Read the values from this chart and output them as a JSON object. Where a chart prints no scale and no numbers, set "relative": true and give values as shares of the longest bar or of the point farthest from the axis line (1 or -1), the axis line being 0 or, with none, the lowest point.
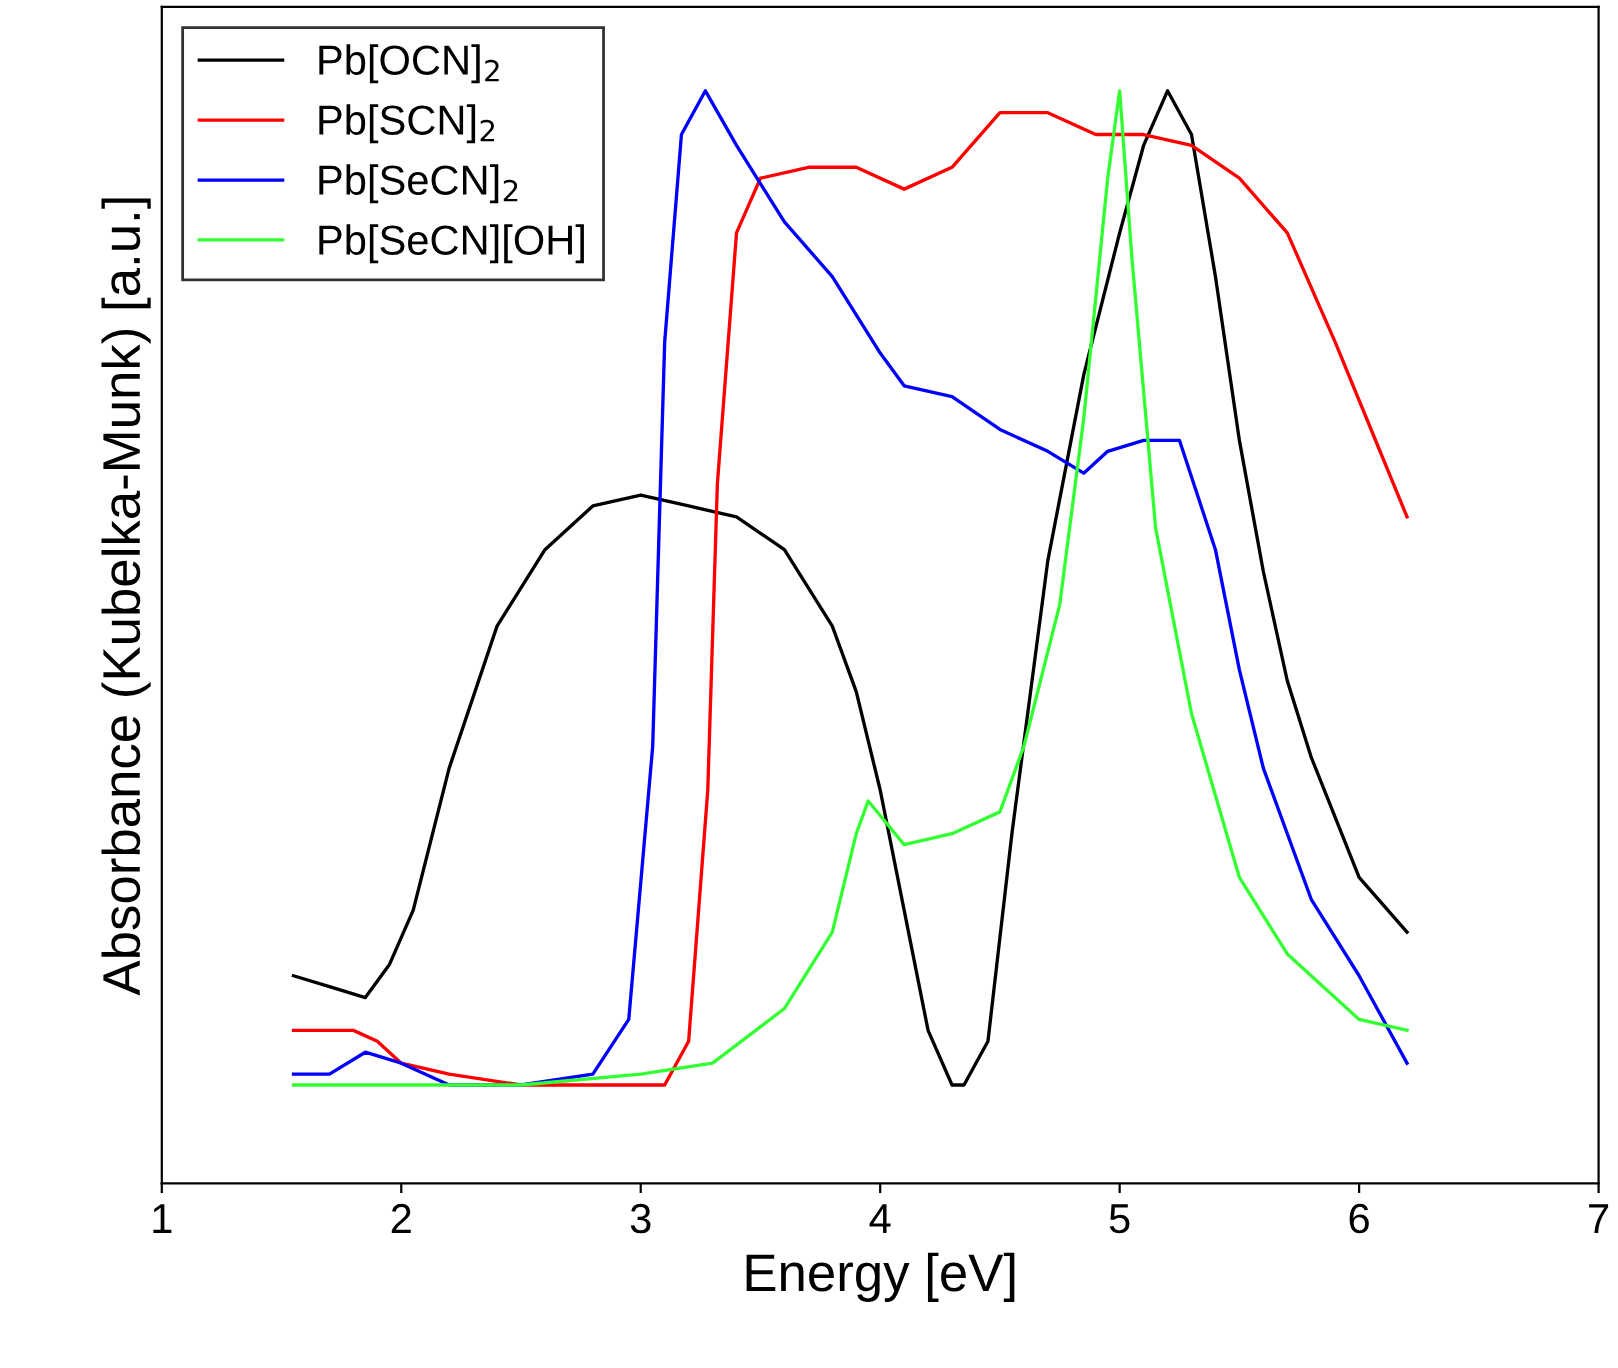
{
  "chart_data": {
    "type": "line",
    "xlabel": "Energy [eV]",
    "ylabel": "Absorbance (Kubelka-Munk) [a.u.]",
    "relative": true,
    "xlim": [
      1,
      7
    ],
    "xticks": [
      1,
      2,
      3,
      4,
      5,
      6,
      7
    ],
    "legend": "top left",
    "grid": false,
    "marker": "none",
    "line_style": "solid",
    "series": [
      {
        "name": "Pb[OCN]$_{2}$",
        "color": "#000000",
        "x": [
          1.55,
          1.7,
          1.85,
          1.95,
          2.05,
          2.2,
          2.4,
          2.6,
          2.8,
          3.0,
          3.2,
          3.4,
          3.6,
          3.8,
          3.9,
          4.0,
          4.1,
          4.2,
          4.3,
          4.35,
          4.45,
          4.55,
          4.7,
          4.85,
          5.0,
          5.1,
          5.2,
          5.3,
          5.4,
          5.5,
          5.6,
          5.7,
          5.8,
          6.0,
          6.2
        ],
        "values": [
          0.19,
          0.18,
          0.17,
          0.2,
          0.25,
          0.38,
          0.51,
          0.58,
          0.62,
          0.63,
          0.62,
          0.61,
          0.58,
          0.51,
          0.45,
          0.36,
          0.25,
          0.14,
          0.09,
          0.09,
          0.13,
          0.32,
          0.57,
          0.74,
          0.87,
          0.95,
          1.0,
          0.96,
          0.83,
          0.68,
          0.56,
          0.46,
          0.39,
          0.28,
          0.23
        ]
      },
      {
        "name": "Pb[SCN]$_{2}$",
        "color": "#ff0000",
        "x": [
          1.55,
          1.8,
          1.9,
          2.0,
          2.2,
          2.5,
          2.8,
          3.1,
          3.2,
          3.28,
          3.32,
          3.4,
          3.5,
          3.7,
          3.9,
          4.1,
          4.3,
          4.5,
          4.7,
          4.9,
          5.1,
          5.3,
          5.5,
          5.7,
          5.9,
          6.05,
          6.2
        ],
        "values": [
          0.14,
          0.14,
          0.13,
          0.11,
          0.1,
          0.09,
          0.09,
          0.09,
          0.13,
          0.36,
          0.64,
          0.87,
          0.92,
          0.93,
          0.93,
          0.91,
          0.93,
          0.98,
          0.98,
          0.96,
          0.96,
          0.95,
          0.92,
          0.87,
          0.77,
          0.69,
          0.61
        ]
      },
      {
        "name": "Pb[SeCN]$_{2}$",
        "color": "#0000ff",
        "x": [
          1.55,
          1.7,
          1.85,
          2.0,
          2.2,
          2.5,
          2.8,
          2.95,
          3.05,
          3.1,
          3.17,
          3.27,
          3.4,
          3.6,
          3.8,
          4.0,
          4.1,
          4.3,
          4.5,
          4.7,
          4.85,
          4.95,
          5.1,
          5.25,
          5.4,
          5.5,
          5.6,
          5.8,
          6.0,
          6.2
        ],
        "values": [
          0.1,
          0.1,
          0.12,
          0.11,
          0.09,
          0.09,
          0.1,
          0.15,
          0.4,
          0.77,
          0.96,
          1.0,
          0.95,
          0.88,
          0.83,
          0.76,
          0.73,
          0.72,
          0.69,
          0.67,
          0.65,
          0.67,
          0.68,
          0.68,
          0.58,
          0.47,
          0.38,
          0.26,
          0.19,
          0.11
        ]
      },
      {
        "name": "Pb[SeCN][OH]",
        "color": "#33ff33",
        "x": [
          1.55,
          2.0,
          2.5,
          3.0,
          3.3,
          3.6,
          3.8,
          3.9,
          3.95,
          4.1,
          4.3,
          4.5,
          4.6,
          4.75,
          4.85,
          4.95,
          5.0,
          5.05,
          5.15,
          5.3,
          5.5,
          5.7,
          6.0,
          6.2
        ],
        "values": [
          0.09,
          0.09,
          0.09,
          0.1,
          0.11,
          0.16,
          0.23,
          0.32,
          0.35,
          0.31,
          0.32,
          0.34,
          0.4,
          0.53,
          0.7,
          0.92,
          1.0,
          0.85,
          0.6,
          0.43,
          0.28,
          0.21,
          0.15,
          0.14
        ]
      }
    ]
  }
}
